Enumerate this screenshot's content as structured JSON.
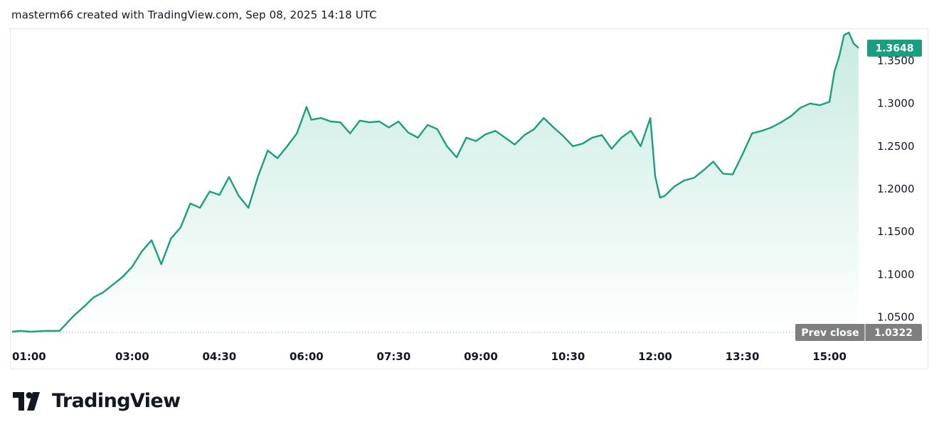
{
  "header": {
    "caption": "masterm66 created with TradingView.com, Sep 08, 2025 14:18 UTC"
  },
  "brand": {
    "name": "TradingView",
    "logo_icon": "tradingview-logo-icon"
  },
  "colors": {
    "line": "#1a9e80",
    "fill_top": "#c8ebe1",
    "fill_bottom": "#ffffff",
    "badge": "#1a9e80",
    "prev_close_badge": "#7f7f7f",
    "text": "#131722"
  },
  "chart_data": {
    "type": "area",
    "title": "",
    "xlabel": "",
    "ylabel": "",
    "x_ticks": [
      "01:00",
      "03:00",
      "04:30",
      "06:00",
      "07:30",
      "09:00",
      "10:30",
      "12:00",
      "13:30",
      "15:00"
    ],
    "y_ticks": [
      "1.0500",
      "1.1000",
      "1.1500",
      "1.2000",
      "1.2500",
      "1.3000",
      "1.3500"
    ],
    "ylim": [
      1.028,
      1.387
    ],
    "xlim": [
      "00:56",
      "15:33"
    ],
    "grid": false,
    "legend": "none",
    "last_value": "1.3648",
    "prev_close_label": "Prev close",
    "prev_close_value": "1.0322",
    "series": [
      {
        "x": [
          "00:56",
          "01:05",
          "01:15",
          "01:30",
          "01:45",
          "02:00",
          "02:10",
          "02:20",
          "02:30",
          "02:40",
          "02:50",
          "03:00",
          "03:10",
          "03:20",
          "03:30",
          "03:40",
          "03:50",
          "04:00",
          "04:10",
          "04:20",
          "04:30",
          "04:40",
          "04:50",
          "05:00",
          "05:10",
          "05:20",
          "05:30",
          "05:40",
          "05:50",
          "06:00",
          "06:05",
          "06:15",
          "06:25",
          "06:35",
          "06:45",
          "06:55",
          "07:05",
          "07:15",
          "07:25",
          "07:35",
          "07:45",
          "07:55",
          "08:05",
          "08:15",
          "08:25",
          "08:35",
          "08:45",
          "08:55",
          "09:05",
          "09:15",
          "09:25",
          "09:35",
          "09:45",
          "09:55",
          "10:05",
          "10:15",
          "10:25",
          "10:35",
          "10:45",
          "10:55",
          "11:05",
          "11:15",
          "11:25",
          "11:35",
          "11:45",
          "11:55",
          "12:00",
          "12:05",
          "12:10",
          "12:20",
          "12:30",
          "12:40",
          "12:50",
          "13:00",
          "13:10",
          "13:20",
          "13:30",
          "13:40",
          "13:50",
          "14:00",
          "14:10",
          "14:20",
          "14:30",
          "14:40",
          "14:50",
          "15:00",
          "15:05",
          "15:10",
          "15:15",
          "15:20",
          "15:25",
          "15:30"
        ],
        "values": [
          1.033,
          1.034,
          1.033,
          1.034,
          1.034,
          1.052,
          1.062,
          1.073,
          1.079,
          1.088,
          1.097,
          1.109,
          1.127,
          1.14,
          1.112,
          1.142,
          1.155,
          1.183,
          1.178,
          1.197,
          1.193,
          1.214,
          1.192,
          1.178,
          1.215,
          1.245,
          1.236,
          1.25,
          1.265,
          1.296,
          1.281,
          1.283,
          1.279,
          1.278,
          1.265,
          1.28,
          1.278,
          1.279,
          1.272,
          1.279,
          1.266,
          1.26,
          1.275,
          1.27,
          1.25,
          1.237,
          1.26,
          1.256,
          1.264,
          1.268,
          1.26,
          1.252,
          1.263,
          1.27,
          1.283,
          1.272,
          1.262,
          1.25,
          1.253,
          1.26,
          1.263,
          1.247,
          1.26,
          1.268,
          1.25,
          1.283,
          1.215,
          1.19,
          1.192,
          1.203,
          1.21,
          1.213,
          1.222,
          1.232,
          1.218,
          1.217,
          1.24,
          1.265,
          1.268,
          1.272,
          1.278,
          1.285,
          1.295,
          1.3,
          1.298,
          1.302,
          1.337,
          1.355,
          1.38,
          1.383,
          1.37,
          1.365
        ]
      }
    ]
  }
}
